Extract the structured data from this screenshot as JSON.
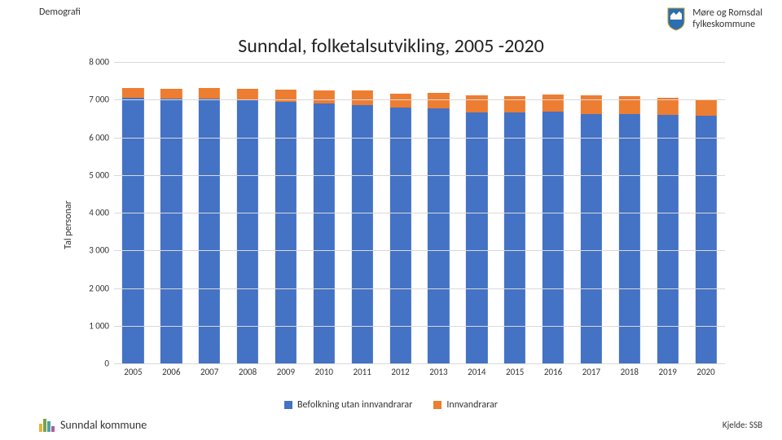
{
  "header": {
    "topline": "Demografi",
    "logo_line1": "Møre og Romsdal",
    "logo_line2": "fylkeskommune"
  },
  "chart": {
    "type": "bar-stacked",
    "title": "Sunndal, folketalsutvikling, 2005 -2020",
    "ylabel": "Tal personar",
    "ylim_max": 8000,
    "ytick_step": 1000,
    "yticks": [
      "0",
      "1 000",
      "2 000",
      "3 000",
      "4 000",
      "5 000",
      "6 000",
      "7 000",
      "8 000"
    ],
    "categories": [
      "2005",
      "2006",
      "2007",
      "2008",
      "2009",
      "2010",
      "2011",
      "2012",
      "2013",
      "2014",
      "2015",
      "2016",
      "2017",
      "2018",
      "2019",
      "2020"
    ],
    "series": [
      {
        "name": "Befolkning utan innvandrarar",
        "color": "#4472c4",
        "values": [
          7040,
          7030,
          7020,
          6980,
          6940,
          6900,
          6860,
          6780,
          6760,
          6670,
          6650,
          6680,
          6620,
          6620,
          6600,
          6580
        ]
      },
      {
        "name": "Innvandrarar",
        "color": "#ed7d31",
        "values": [
          260,
          260,
          280,
          300,
          320,
          340,
          380,
          380,
          420,
          450,
          440,
          450,
          500,
          480,
          440,
          420
        ]
      }
    ],
    "background_color": "#ffffff",
    "grid_color": "#d9d9d9",
    "label_fontsize": 12,
    "title_fontsize": 24,
    "bar_width": 0.56
  },
  "footer": {
    "left": "Sunndal kommune",
    "right": "Kjelde: SSB"
  }
}
